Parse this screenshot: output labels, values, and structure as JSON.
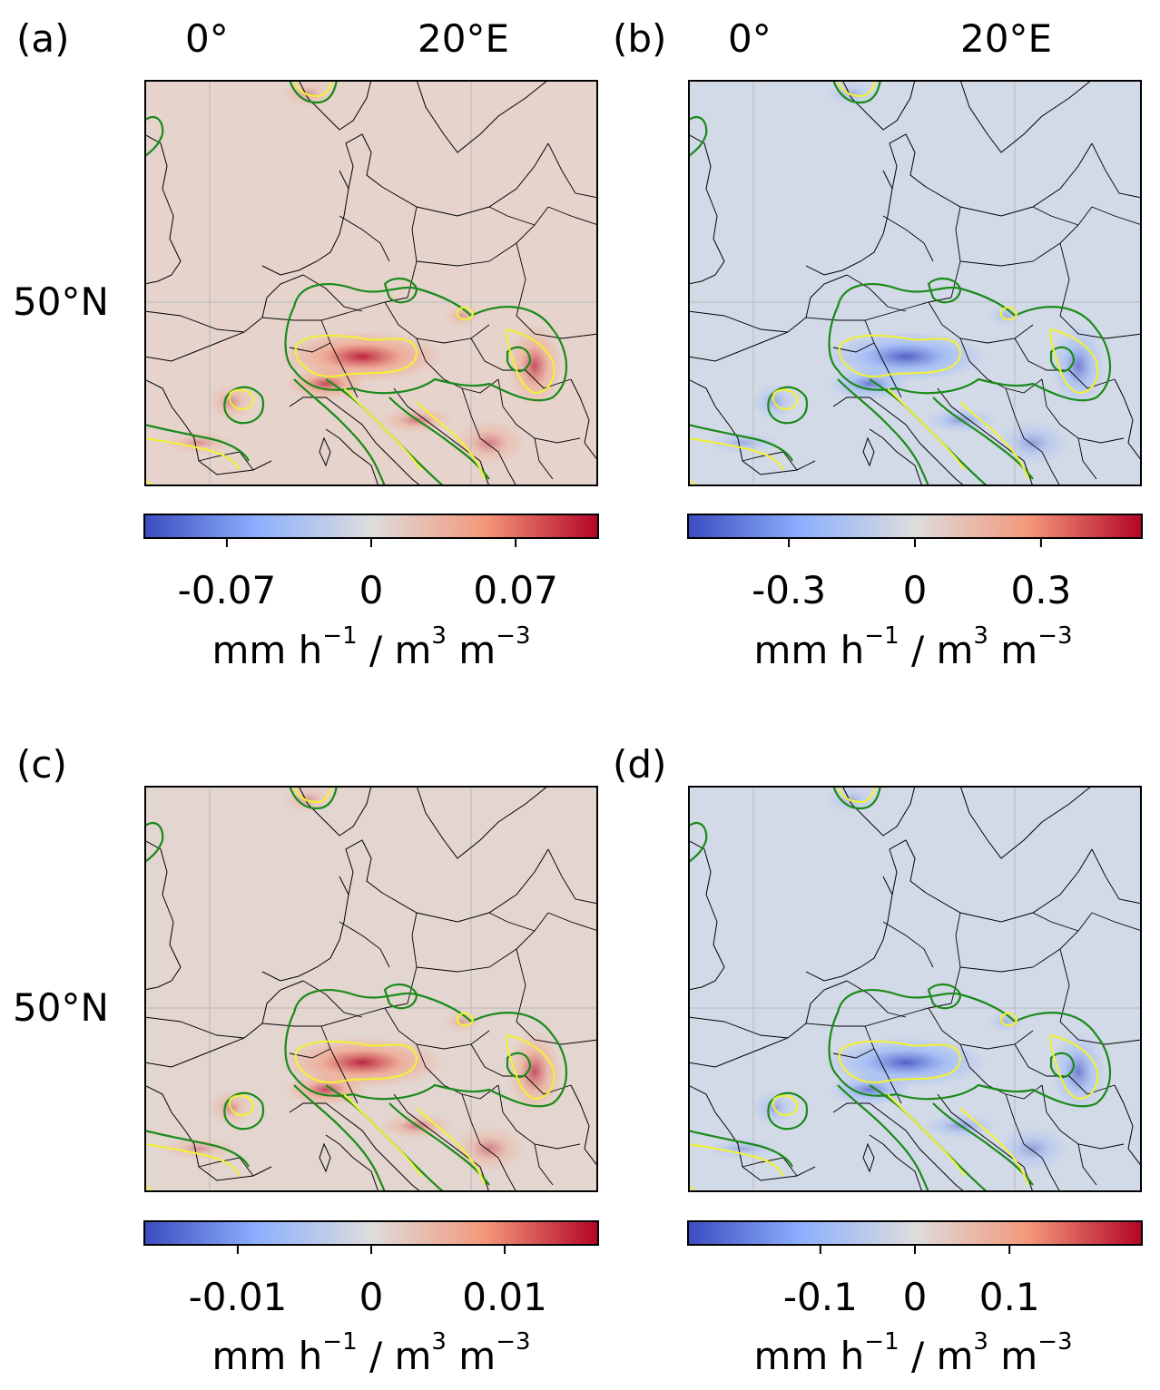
{
  "panels": [
    {
      "label": "(a)",
      "lon_labels": [
        "0°",
        "20°E"
      ],
      "lat_labels": [
        "50°N"
      ],
      "field_sign": "positive",
      "colorbar": {
        "ticks": [
          "-0.07",
          "0",
          "0.07"
        ],
        "tick_values": [
          -0.07,
          0,
          0.07
        ],
        "range": [
          -0.11,
          0.11
        ],
        "unit_base": "mm h",
        "unit_exp1": "−1",
        "unit_mid": " / m",
        "unit_exp2": "3",
        "unit_m": " m",
        "unit_exp3": "−3"
      }
    },
    {
      "label": "(b)",
      "lon_labels": [
        "0°",
        "20°E"
      ],
      "lat_labels": [],
      "field_sign": "negative",
      "colorbar": {
        "ticks": [
          "-0.3",
          "0",
          "0.3"
        ],
        "tick_values": [
          -0.3,
          0,
          0.3
        ],
        "range": [
          -0.54,
          0.54
        ],
        "unit_base": "mm h",
        "unit_exp1": "−1",
        "unit_mid": " / m",
        "unit_exp2": "3",
        "unit_m": " m",
        "unit_exp3": "−3"
      }
    },
    {
      "label": "(c)",
      "lon_labels": [],
      "lat_labels": [
        "50°N"
      ],
      "field_sign": "positive",
      "colorbar": {
        "ticks": [
          "-0.01",
          "0",
          "0.01"
        ],
        "tick_values": [
          -0.01,
          0,
          0.01
        ],
        "range": [
          -0.017,
          0.017
        ],
        "unit_base": "mm h",
        "unit_exp1": "−1",
        "unit_mid": " / m",
        "unit_exp2": "3",
        "unit_m": " m",
        "unit_exp3": "−3"
      }
    },
    {
      "label": "(d)",
      "lon_labels": [],
      "lat_labels": [],
      "field_sign": "negative",
      "colorbar": {
        "ticks": [
          "-0.1",
          "0",
          "0.1"
        ],
        "tick_values": [
          -0.1,
          0,
          0.1
        ],
        "range": [
          -0.24,
          0.24
        ],
        "unit_base": "mm h",
        "unit_exp1": "−1",
        "unit_mid": " / m",
        "unit_exp2": "3",
        "unit_m": " m",
        "unit_exp3": "−3"
      }
    }
  ],
  "colors": {
    "background_field": "#dcdcdc",
    "contour_green": "#1a8a1a",
    "contour_yellow": "#f2f230",
    "borders": "#000000",
    "gridlines": "#b8b8b8",
    "colormap": [
      "#3b4cc0",
      "#8db0fe",
      "#dddddd",
      "#f4987a",
      "#b40426"
    ]
  }
}
